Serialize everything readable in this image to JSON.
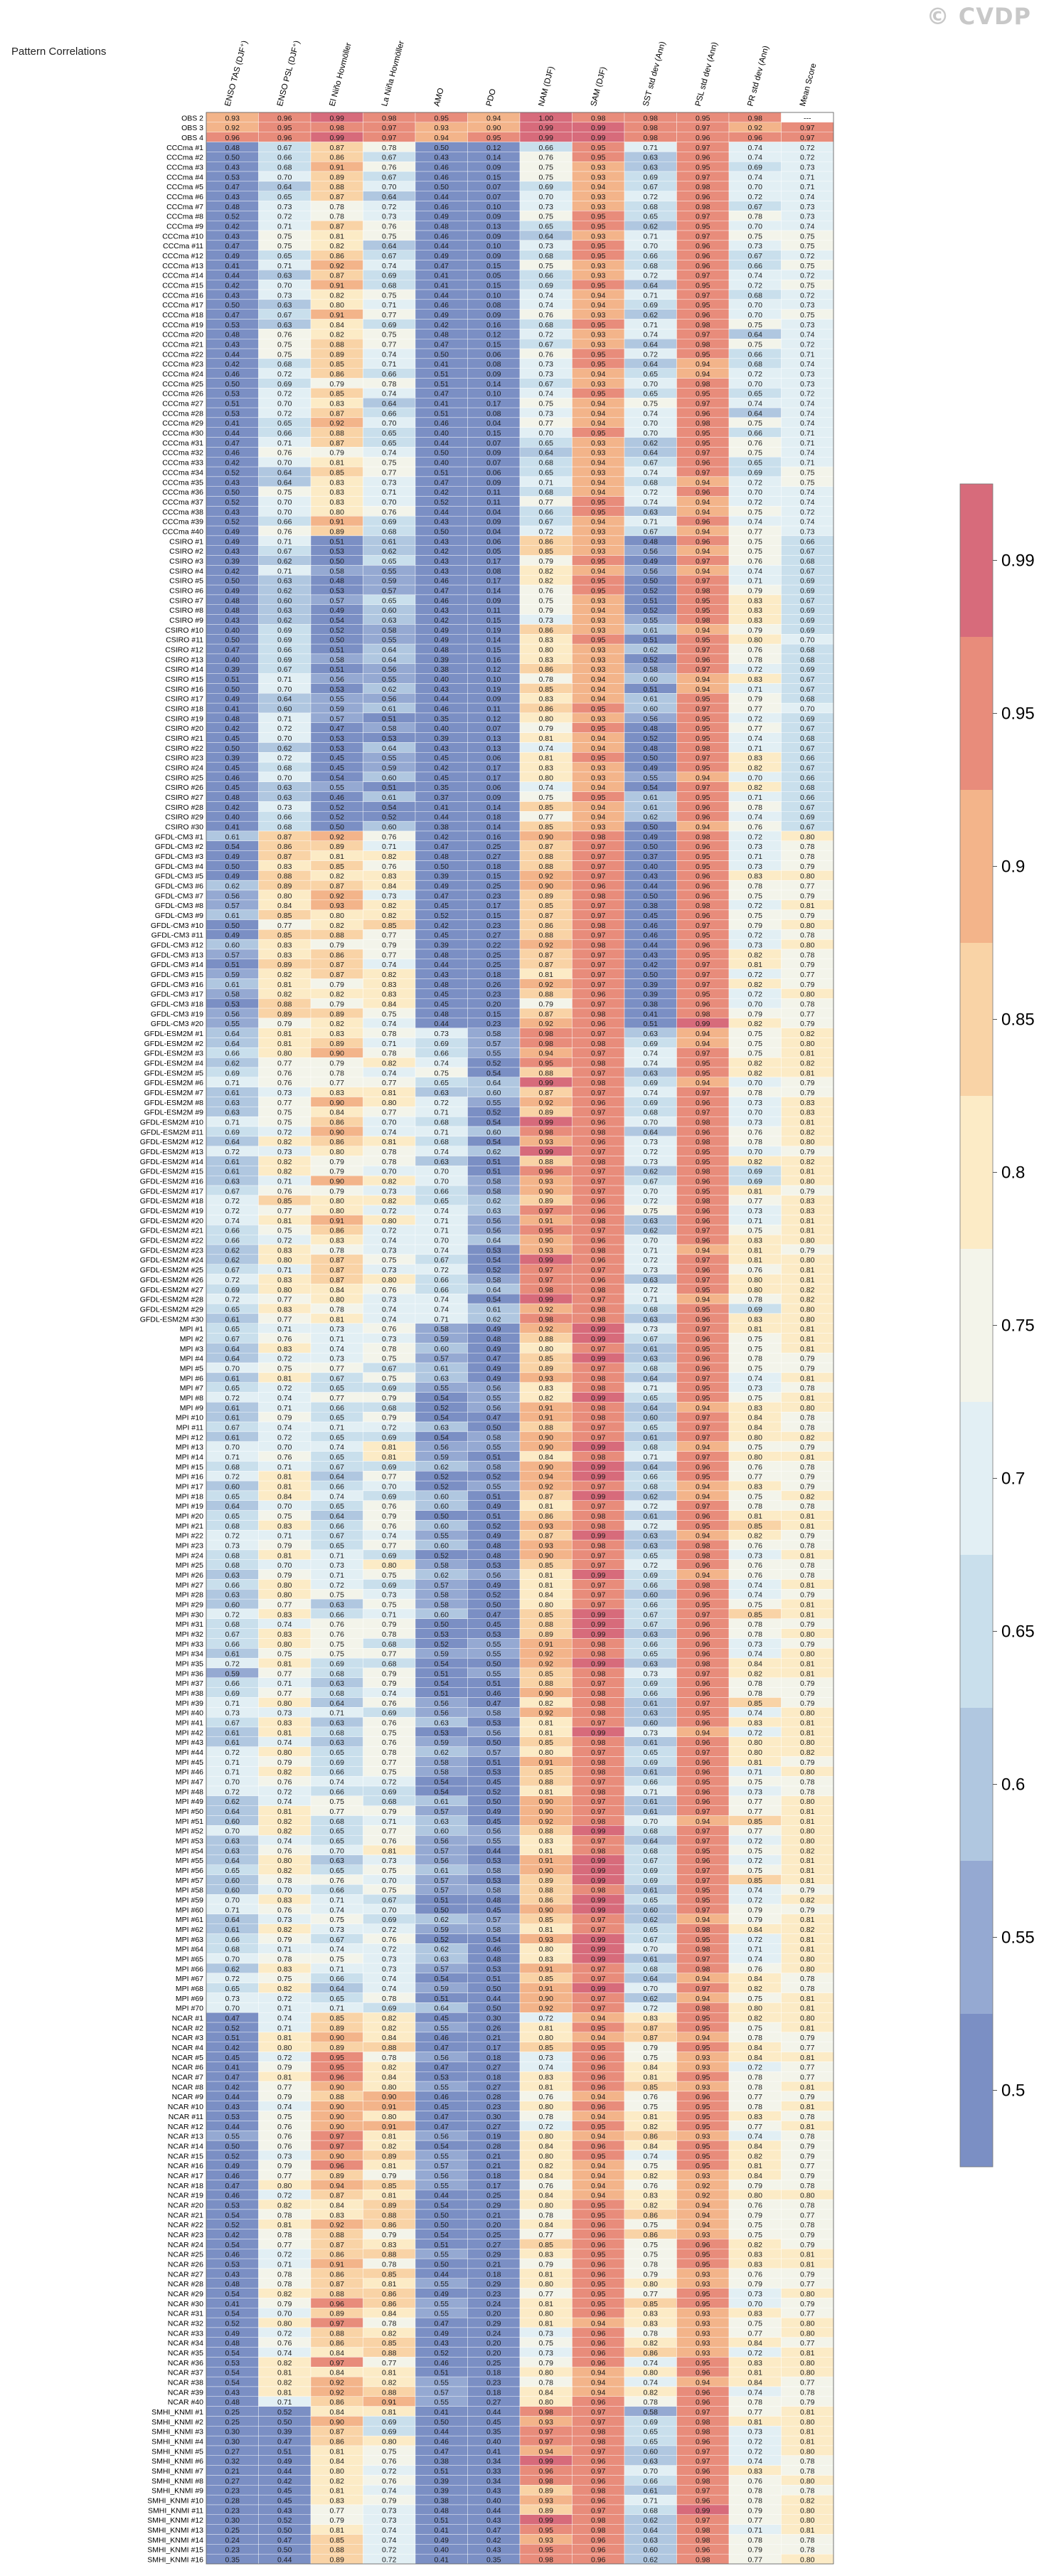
{
  "title": "Pattern Correlations",
  "logo_text": "© CVDP",
  "chart_data": {
    "type": "heatmap",
    "title": "Pattern Correlations",
    "columns": [
      "ENSO TAS (DJF⁺)",
      "ENSO PSL (DJF⁺)",
      "El Niño Hovmöller",
      "La Niña Hovmöller",
      "AMO",
      "PDO",
      "NAM (DJF)",
      "SAM (DJF)",
      "SST std dev (Ann)",
      "PSL std dev (Ann)",
      "PR std dev (Ann)",
      "Mean Score"
    ],
    "colorbar": {
      "ticks": [
        0.5,
        0.55,
        0.6,
        0.65,
        0.7,
        0.75,
        0.8,
        0.85,
        0.9,
        0.95,
        0.99
      ],
      "tick_labels": [
        "0.5",
        "0.55",
        "0.6",
        "0.65",
        "0.7",
        "0.75",
        "0.8",
        "0.85",
        "0.9",
        "0.95",
        "0.99"
      ],
      "colors": [
        "#7b8fc4",
        "#95a9d2",
        "#b0c7e0",
        "#c9dfec",
        "#e2eff4",
        "#f3f4ea",
        "#fcebc6",
        "#f9d3a6",
        "#f3b48a",
        "#e88c7b",
        "#d76b7b"
      ]
    },
    "groups": [
      {
        "prefix": "OBS",
        "numbers": [
          2,
          3,
          4
        ],
        "base": [
          0.93,
          0.95,
          0.99,
          0.98,
          0.95,
          0.94,
          0.99,
          0.99,
          0.98,
          0.96,
          0.96,
          0.97
        ]
      },
      {
        "prefix": "CCCma",
        "count": 40,
        "base": [
          0.46,
          0.7,
          0.85,
          0.71,
          0.47,
          0.1,
          0.71,
          0.94,
          0.68,
          0.96,
          0.71,
          0.73
        ]
      },
      {
        "prefix": "CSIRO",
        "count": 30,
        "base": [
          0.45,
          0.67,
          0.52,
          0.58,
          0.42,
          0.12,
          0.8,
          0.94,
          0.55,
          0.96,
          0.77,
          0.68
        ]
      },
      {
        "prefix": "GFDL-CM3",
        "count": 20,
        "base": [
          0.55,
          0.83,
          0.86,
          0.78,
          0.46,
          0.21,
          0.86,
          0.97,
          0.44,
          0.97,
          0.76,
          0.79
        ]
      },
      {
        "prefix": "GFDL-ESM2M",
        "count": 30,
        "base": [
          0.67,
          0.78,
          0.84,
          0.77,
          0.68,
          0.58,
          0.94,
          0.97,
          0.68,
          0.96,
          0.76,
          0.81
        ]
      },
      {
        "prefix": "MPI",
        "count": 70,
        "base": [
          0.66,
          0.77,
          0.7,
          0.74,
          0.57,
          0.51,
          0.87,
          0.98,
          0.66,
          0.96,
          0.78,
          0.8
        ]
      },
      {
        "prefix": "NCAR",
        "count": 40,
        "base": [
          0.48,
          0.76,
          0.9,
          0.84,
          0.5,
          0.23,
          0.78,
          0.95,
          0.81,
          0.94,
          0.77,
          0.79
        ]
      },
      {
        "prefix": "SMHI_KNMI",
        "count": 16,
        "base": [
          0.28,
          0.45,
          0.83,
          0.74,
          0.45,
          0.4,
          0.95,
          0.97,
          0.64,
          0.97,
          0.77,
          0.8
        ]
      }
    ],
    "first_rows": [
      {
        "label": "OBS 2",
        "values": [
          "0.93",
          "0.96",
          "0.99",
          "0.98",
          "0.95",
          "0.94",
          "1.00",
          "0.98",
          "0.98",
          "0.95",
          "0.98",
          "---"
        ]
      },
      {
        "label": "OBS 3",
        "values": [
          "0.92",
          "0.95",
          "0.98",
          "0.97",
          "0.93",
          "0.90",
          "0.99",
          "0.99",
          "0.98",
          "0.97",
          "0.92",
          "0.97"
        ]
      },
      {
        "label": "OBS 4",
        "values": [
          "0.96",
          "0.96",
          "0.99",
          "0.97",
          "0.94",
          "0.95",
          "0.99",
          "0.99",
          "0.98",
          "0.96",
          "0.96",
          "0.97"
        ]
      }
    ]
  }
}
